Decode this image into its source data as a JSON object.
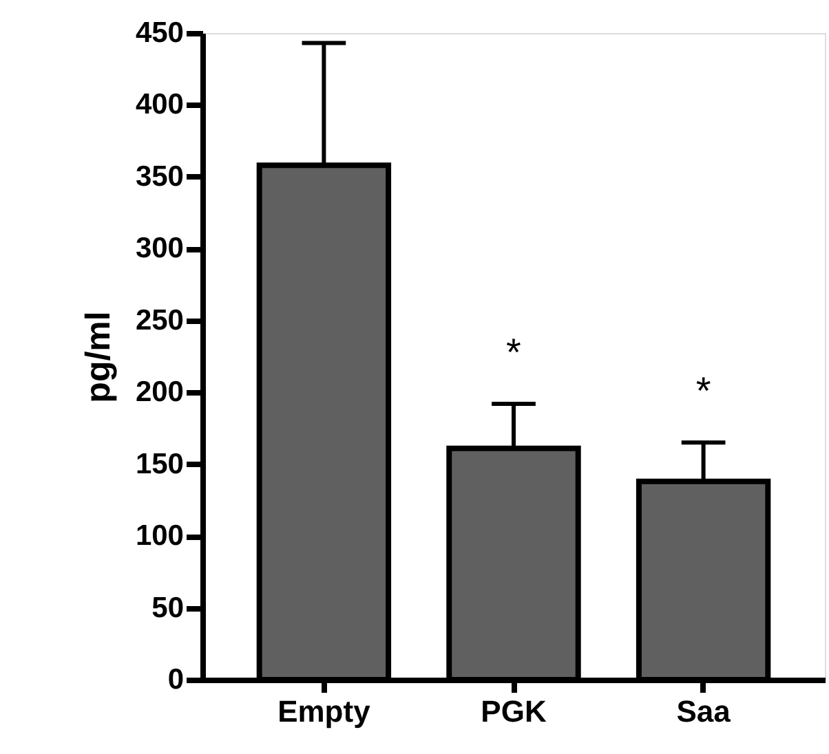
{
  "chart_data": {
    "type": "bar",
    "ylabel": "pg/ml",
    "categories": [
      "Empty",
      "PGK",
      "Saa"
    ],
    "values": [
      358,
      161,
      138
    ],
    "errors": [
      [
        358,
        443
      ],
      [
        161,
        192
      ],
      [
        138,
        165
      ]
    ],
    "color": "#606060",
    "ylim": [
      0,
      450
    ],
    "yticks": [
      0,
      50,
      100,
      150,
      200,
      250,
      300,
      350,
      400,
      450
    ],
    "grid": false,
    "annotations": [
      "*",
      "*"
    ]
  }
}
